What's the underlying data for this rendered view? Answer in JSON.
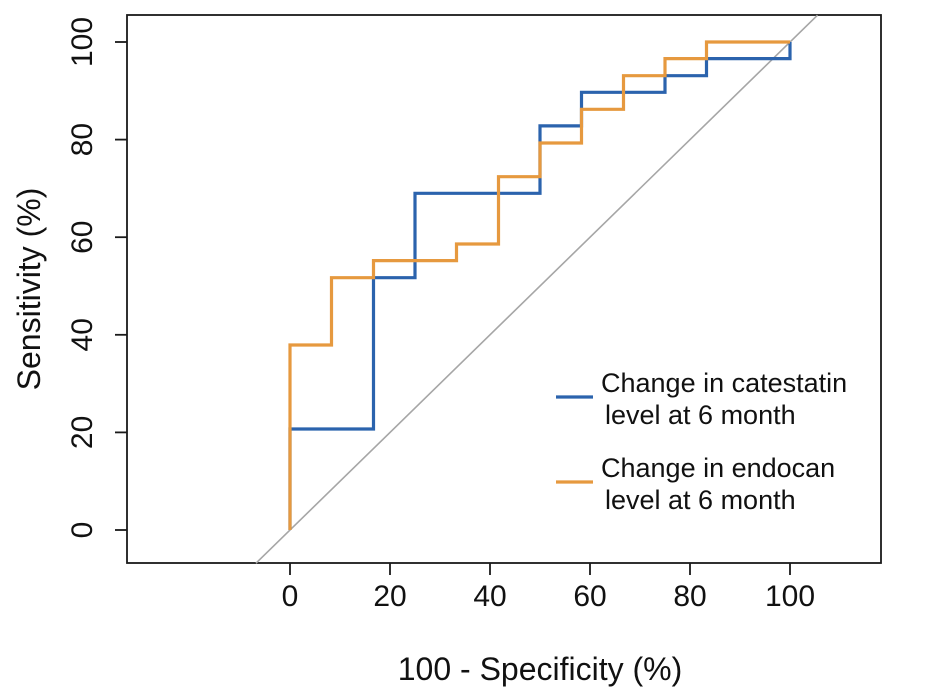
{
  "figure": {
    "kind": "roc-curve-plot",
    "background": "#ffffff",
    "text_color": "#111111",
    "frame_color": "#1a1a1a"
  },
  "chart_data": {
    "type": "line",
    "subtype": "roc-step",
    "title": "",
    "xlabel": "100 - Specificity (%)",
    "ylabel": "Sensitivity (%)",
    "xlim": [
      0,
      100
    ],
    "ylim": [
      0,
      100
    ],
    "x_ticks": [
      0,
      20,
      40,
      60,
      80,
      100
    ],
    "y_ticks": [
      0,
      20,
      40,
      60,
      80,
      100
    ],
    "grid": false,
    "legend_position": "inside-right",
    "reference_line": {
      "name": "chance-diagonal",
      "color": "#a6a6a6",
      "from": [
        -6.8,
        -6.8
      ],
      "to": [
        105.5,
        105.5
      ]
    },
    "series": [
      {
        "id": "catestatin",
        "name": "Change in catestatin level at 6 month",
        "color": "#2b63ad",
        "points": [
          [
            0,
            0
          ],
          [
            0,
            20.7
          ],
          [
            16.7,
            20.7
          ],
          [
            16.7,
            51.7
          ],
          [
            25,
            51.7
          ],
          [
            25,
            69
          ],
          [
            50,
            69
          ],
          [
            50,
            82.8
          ],
          [
            58.3,
            82.8
          ],
          [
            58.3,
            89.7
          ],
          [
            75,
            89.7
          ],
          [
            75,
            93.1
          ],
          [
            83.3,
            93.1
          ],
          [
            83.3,
            96.6
          ],
          [
            100,
            96.6
          ],
          [
            100,
            100
          ]
        ]
      },
      {
        "id": "endocan",
        "name": "Change in endocan level at 6 month",
        "color": "#e6993f",
        "points": [
          [
            0,
            0
          ],
          [
            0,
            37.9
          ],
          [
            8.3,
            37.9
          ],
          [
            8.3,
            51.7
          ],
          [
            16.7,
            51.7
          ],
          [
            16.7,
            55.2
          ],
          [
            33.3,
            55.2
          ],
          [
            33.3,
            58.6
          ],
          [
            41.7,
            58.6
          ],
          [
            41.7,
            72.4
          ],
          [
            50,
            72.4
          ],
          [
            50,
            79.3
          ],
          [
            58.3,
            79.3
          ],
          [
            58.3,
            86.2
          ],
          [
            66.7,
            86.2
          ],
          [
            66.7,
            93.1
          ],
          [
            75,
            93.1
          ],
          [
            75,
            96.6
          ],
          [
            83.3,
            96.6
          ],
          [
            83.3,
            100
          ],
          [
            100,
            100
          ]
        ]
      }
    ],
    "legend": {
      "entries": [
        {
          "series_id": "catestatin",
          "color": "#2b63ad",
          "lines": [
            "Change in catestatin",
            " level at 6 month"
          ]
        },
        {
          "series_id": "endocan",
          "color": "#e6993f",
          "lines": [
            "Change in endocan",
            " level at 6 month"
          ]
        }
      ]
    }
  }
}
